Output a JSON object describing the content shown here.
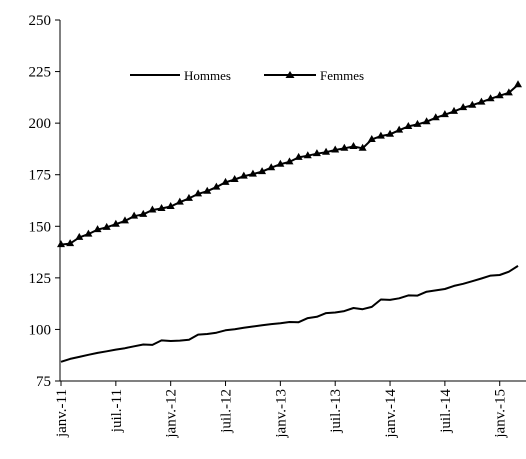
{
  "chart_data": {
    "type": "line",
    "title": "",
    "xlabel": "",
    "ylabel": "",
    "ylim": [
      75,
      250
    ],
    "yticks": [
      75,
      100,
      125,
      150,
      175,
      200,
      225,
      250
    ],
    "xtick_labels": [
      "janv.-11",
      "juil.-11",
      "janv.-12",
      "juil.-12",
      "janv.-13",
      "juil.-13",
      "janv.-14",
      "juil.-14",
      "janv.-15"
    ],
    "grid": false,
    "legend": {
      "placement": "top-left",
      "entries": [
        "Hommes",
        "Femmes"
      ]
    },
    "colors": {
      "line": "#000000",
      "background": "#ffffff"
    },
    "series": [
      {
        "name": "Hommes",
        "marker": "none",
        "values": [
          84.3,
          85.7,
          86.7,
          87.7,
          88.6,
          89.4,
          90.2,
          90.9,
          91.8,
          92.7,
          92.5,
          94.7,
          94.4,
          94.6,
          95.0,
          97.5,
          97.8,
          98.4,
          99.6,
          100.1,
          100.8,
          101.4,
          102.0,
          102.6,
          103.0,
          103.6,
          103.5,
          105.5,
          106.1,
          107.9,
          108.2,
          108.9,
          110.4,
          109.8,
          110.9,
          114.5,
          114.3,
          115.1,
          116.5,
          116.4,
          118.3,
          118.9,
          119.6,
          121.1,
          122.1,
          123.4,
          124.7,
          126.1,
          126.4,
          128.0,
          130.8
        ]
      },
      {
        "name": "Femmes",
        "marker": "triangle",
        "values": [
          141.1,
          141.6,
          144.6,
          146.2,
          148.4,
          149.5,
          151.0,
          152.6,
          154.9,
          155.8,
          157.9,
          158.6,
          159.6,
          161.7,
          163.5,
          165.7,
          167.0,
          169.0,
          171.3,
          172.7,
          174.3,
          175.3,
          176.5,
          178.4,
          180.1,
          181.2,
          183.4,
          184.2,
          185.2,
          185.9,
          187.0,
          187.8,
          188.7,
          187.8,
          192.1,
          193.7,
          194.6,
          196.6,
          198.4,
          199.4,
          200.7,
          202.6,
          204.1,
          205.7,
          207.5,
          208.7,
          210.2,
          211.8,
          213.3,
          214.7,
          218.6
        ]
      }
    ]
  }
}
